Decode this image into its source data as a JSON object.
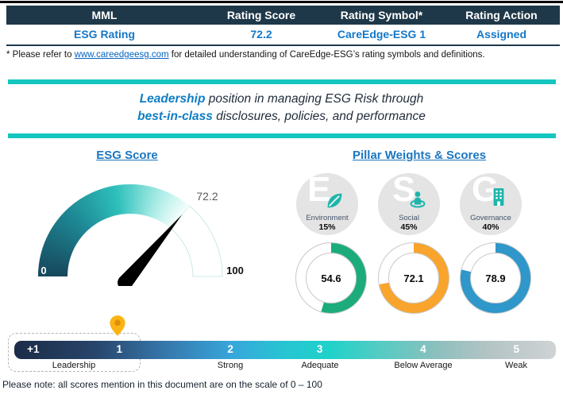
{
  "rating_table": {
    "headers": [
      "MML",
      "Rating Score",
      "Rating Symbol*",
      "Rating Action"
    ],
    "row": {
      "entity": "ESG Rating",
      "score": "72.2",
      "symbol": "CareEdge-ESG 1",
      "action": "Assigned"
    }
  },
  "footnote": {
    "prefix": "* Please refer to ",
    "link_text": "www.careedgeesg.com",
    "suffix": " for detailed understanding of CareEdge-ESG’s rating symbols and definitions."
  },
  "statement": {
    "line1_highlight": "Leadership",
    "line1_rest": " position in managing ESG Risk through",
    "line2_highlight": "best-in-class",
    "line2_rest": " disclosures, policies, and performance"
  },
  "gauge": {
    "heading": "ESG Score",
    "value": 72.2,
    "min": 0,
    "max": 100,
    "value_label": "72.2",
    "min_label": "0",
    "max_label": "100",
    "needle_color": "#000000",
    "remainder_outline": "#BFE4E1",
    "gradient_stops": [
      [
        0,
        "#17465C"
      ],
      [
        0.35,
        "#1D8793"
      ],
      [
        0.62,
        "#2EC0BB"
      ],
      [
        0.85,
        "#AEEDE7"
      ],
      [
        1,
        "#F4FEFC"
      ]
    ]
  },
  "pillars": {
    "heading": "Pillar Weights & Scores",
    "circle_color": "#E4E4E4",
    "icon_color": "#1FB5AC",
    "items": [
      {
        "letter": "E",
        "name": "Environment",
        "weight": "15%",
        "score": "54.6",
        "color": "#1CAC7C"
      },
      {
        "letter": "S",
        "name": "Social",
        "weight": "45%",
        "score": "72.1",
        "color": "#F9A42C"
      },
      {
        "letter": "G",
        "name": "Governance",
        "weight": "40%",
        "score": "78.9",
        "color": "#2F97C9"
      }
    ]
  },
  "scale": {
    "numbers": [
      "+1",
      "1",
      "2",
      "3",
      "4",
      "5"
    ],
    "labels": [
      "Leadership",
      "Strong",
      "Adequate",
      "Below Average",
      "Weak"
    ],
    "selected_band": "Leadership",
    "pin_color": "#FBB414",
    "gradient_stops": [
      [
        0,
        "#1B2C47"
      ],
      [
        0.15,
        "#28456B"
      ],
      [
        0.28,
        "#3678AC"
      ],
      [
        0.4,
        "#37A6DB"
      ],
      [
        0.5,
        "#27C5D2"
      ],
      [
        0.58,
        "#1ED2CA"
      ],
      [
        0.68,
        "#57CBC3"
      ],
      [
        0.78,
        "#8CBFBD"
      ],
      [
        0.88,
        "#B5C4C5"
      ],
      [
        1,
        "#CFD3D4"
      ]
    ]
  },
  "note": "Please note: all scores mention in this document are on the scale of 0 – 100",
  "theme": {
    "header_bg": "#1F3849",
    "row_text_blue": "#1478C8",
    "teal_divider": "#15C6BF",
    "link_blue": "#0563C1"
  },
  "chart_data": [
    {
      "type": "gauge",
      "title": "ESG Score",
      "value": 72.2,
      "min": 0,
      "max": 100
    },
    {
      "type": "donut",
      "title": "Environment",
      "weight_percent": 15,
      "value": 54.6,
      "max": 100,
      "color": "#1CAC7C"
    },
    {
      "type": "donut",
      "title": "Social",
      "weight_percent": 45,
      "value": 72.1,
      "max": 100,
      "color": "#F9A42C"
    },
    {
      "type": "donut",
      "title": "Governance",
      "weight_percent": 40,
      "value": 78.9,
      "max": 100,
      "color": "#2F97C9"
    },
    {
      "type": "scale",
      "categories": [
        "+1",
        "1",
        "2",
        "3",
        "4",
        "5"
      ],
      "band_labels": [
        "Leadership",
        "Strong",
        "Adequate",
        "Below Average",
        "Weak"
      ],
      "selected": "1",
      "selected_label": "Leadership"
    }
  ]
}
